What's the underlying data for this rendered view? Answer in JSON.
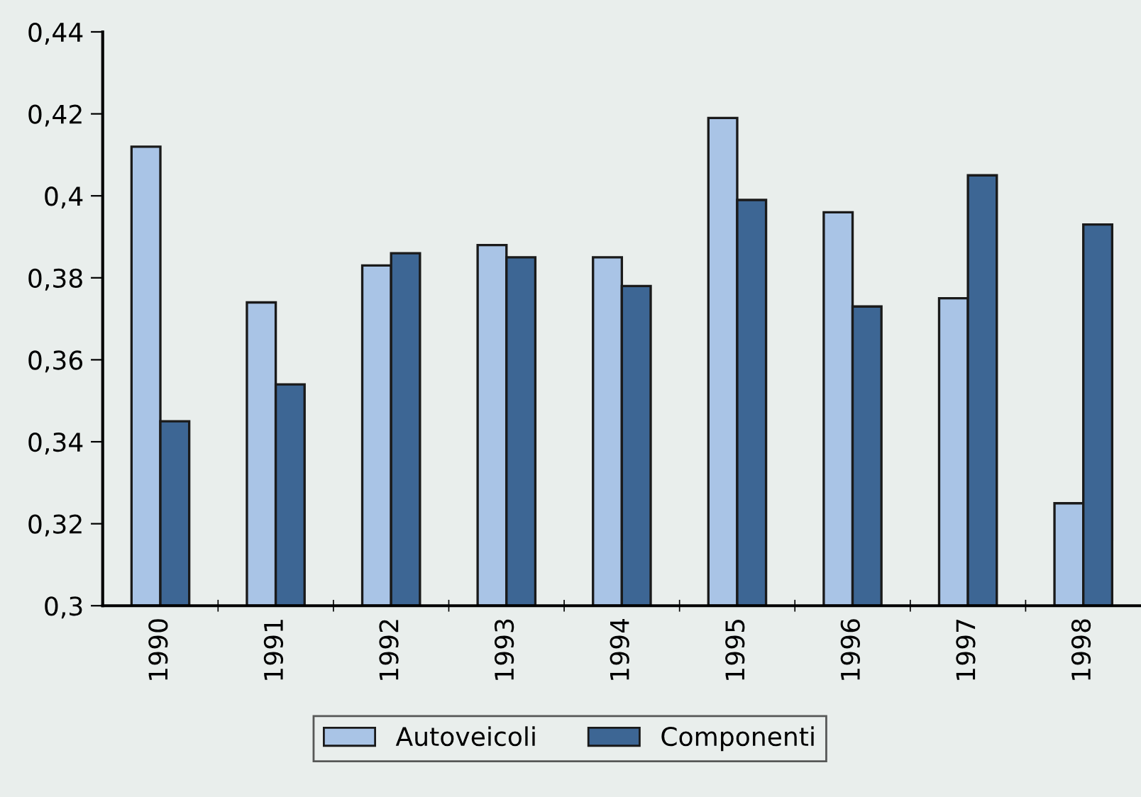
{
  "chart_data": {
    "type": "bar",
    "categories": [
      "1990",
      "1991",
      "1992",
      "1993",
      "1994",
      "1995",
      "1996",
      "1997",
      "1998"
    ],
    "series": [
      {
        "name": "Autoveicoli",
        "color": "#a9c4e6",
        "values": [
          0.412,
          0.374,
          0.383,
          0.388,
          0.385,
          0.419,
          0.396,
          0.375,
          0.325
        ]
      },
      {
        "name": "Componenti",
        "color": "#3d6694",
        "values": [
          0.345,
          0.354,
          0.386,
          0.385,
          0.378,
          0.399,
          0.373,
          0.405,
          0.393
        ]
      }
    ],
    "ylim": [
      0.3,
      0.44
    ],
    "yticks": [
      {
        "value": 0.3,
        "label": "0,3"
      },
      {
        "value": 0.32,
        "label": "0,32"
      },
      {
        "value": 0.34,
        "label": "0,34"
      },
      {
        "value": 0.36,
        "label": "0,36"
      },
      {
        "value": 0.38,
        "label": "0,38"
      },
      {
        "value": 0.4,
        "label": "0,4"
      },
      {
        "value": 0.42,
        "label": "0,42"
      },
      {
        "value": 0.44,
        "label": "0,44"
      }
    ],
    "grid": false,
    "legend": "bottom"
  }
}
